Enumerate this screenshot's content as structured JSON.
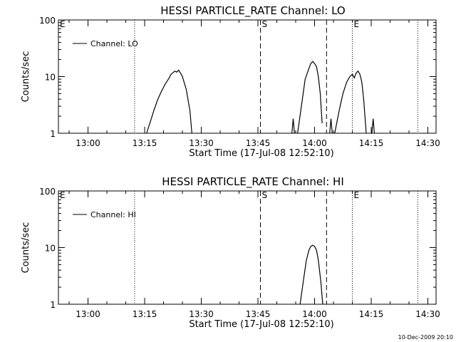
{
  "footer": {
    "timestamp": "10-Dec-2009 20:10"
  },
  "chart_data": [
    {
      "type": "line",
      "title": "HESSI PARTICLE_RATE Channel: LO",
      "xlabel": "Start Time (17-Jul-08 12:52:10)",
      "ylabel": "Counts/sec",
      "yscale": "log",
      "xlim": [
        "12:52:10",
        "14:32:10"
      ],
      "ylim": [
        1,
        100
      ],
      "x_ticks": [
        "13:00",
        "13:15",
        "13:30",
        "13:45",
        "14:00",
        "14:15",
        "14:30"
      ],
      "y_ticks": [
        "1",
        "10",
        "100"
      ],
      "legend": {
        "position": "top-left",
        "entries": [
          "Channel: LO"
        ]
      },
      "markers": [
        {
          "time": "12:52:10",
          "label": "E",
          "style": "dotted"
        },
        {
          "time": "13:12:20",
          "label": "",
          "style": "dotted"
        },
        {
          "time": "13:45:40",
          "label": "S",
          "style": "dashed"
        },
        {
          "time": "14:03:10",
          "label": "",
          "style": "dashed"
        },
        {
          "time": "14:10:00",
          "label": "E",
          "style": "dotted"
        },
        {
          "time": "14:27:20",
          "label": "",
          "style": "dotted"
        }
      ],
      "series": [
        {
          "name": "Channel: LO",
          "segments": [
            {
              "x": [
                "13:15:30",
                "13:16:30",
                "13:17:30",
                "13:18:30",
                "13:19:30",
                "13:20:30",
                "13:21:30",
                "13:22:00",
                "13:23:00",
                "13:23:30",
                "13:24:00",
                "13:24:30",
                "13:25:00",
                "13:26:00",
                "13:27:00",
                "13:27:30"
              ],
              "y": [
                1,
                1.6,
                2.6,
                4,
                5.6,
                7.5,
                9.5,
                11,
                12.5,
                12,
                13,
                11.5,
                10,
                6,
                2.5,
                1
              ]
            },
            {
              "x": [
                "13:54:00",
                "13:54:20",
                "13:54:40"
              ],
              "y": [
                1,
                1.8,
                1
              ]
            },
            {
              "x": [
                "13:55:30",
                "13:56:30",
                "13:57:30",
                "13:58:30",
                "13:59:00",
                "13:59:30",
                "14:00:00",
                "14:00:30",
                "14:01:00",
                "14:01:30",
                "14:02:00"
              ],
              "y": [
                1,
                3,
                9,
                14,
                17,
                18.5,
                17,
                15,
                10,
                5,
                1.5
              ]
            },
            {
              "x": [
                "14:04:00",
                "14:04:20",
                "14:04:40"
              ],
              "y": [
                1,
                1.8,
                1
              ]
            },
            {
              "x": [
                "14:05:20",
                "14:06:30",
                "14:07:30",
                "14:08:30",
                "14:09:20",
                "14:10:00",
                "14:10:30",
                "14:11:00",
                "14:11:30",
                "14:12:00",
                "14:12:30",
                "14:13:00",
                "14:13:40"
              ],
              "y": [
                1,
                2.5,
                5,
                8,
                10,
                11,
                9.5,
                11.5,
                12.5,
                11,
                8,
                4,
                1
              ]
            },
            {
              "x": [
                "14:15:10",
                "14:15:30",
                "14:15:50"
              ],
              "y": [
                1,
                1.8,
                1
              ]
            }
          ]
        }
      ]
    },
    {
      "type": "line",
      "title": "HESSI PARTICLE_RATE Channel: HI",
      "xlabel": "Start Time (17-Jul-08 12:52:10)",
      "ylabel": "Counts/sec",
      "yscale": "log",
      "xlim": [
        "12:52:10",
        "14:32:10"
      ],
      "ylim": [
        1,
        100
      ],
      "x_ticks": [
        "13:00",
        "13:15",
        "13:30",
        "13:45",
        "14:00",
        "14:15",
        "14:30"
      ],
      "y_ticks": [
        "1",
        "10",
        "100"
      ],
      "legend": {
        "position": "top-left",
        "entries": [
          "Channel: HI"
        ]
      },
      "markers": [
        {
          "time": "12:52:10",
          "label": "E",
          "style": "dotted"
        },
        {
          "time": "13:12:20",
          "label": "",
          "style": "dotted"
        },
        {
          "time": "13:45:40",
          "label": "S",
          "style": "dashed"
        },
        {
          "time": "14:03:10",
          "label": "",
          "style": "dashed"
        },
        {
          "time": "14:10:00",
          "label": "E",
          "style": "dotted"
        },
        {
          "time": "14:27:20",
          "label": "",
          "style": "dotted"
        }
      ],
      "series": [
        {
          "name": "Channel: HI",
          "segments": [
            {
              "x": [
                "13:56:10",
                "13:57:00",
                "13:57:50",
                "13:58:30",
                "13:59:00",
                "13:59:30",
                "14:00:00",
                "14:00:30",
                "14:01:00",
                "14:01:40",
                "14:02:10"
              ],
              "y": [
                1,
                2.5,
                6,
                9,
                10.5,
                11,
                10.5,
                9,
                6,
                2.5,
                1
              ]
            }
          ]
        }
      ]
    }
  ]
}
